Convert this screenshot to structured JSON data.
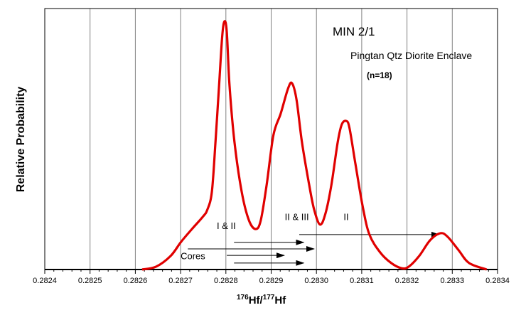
{
  "chart_data": {
    "type": "line",
    "title": "MIN 2/1",
    "subtitle": "Pingtan Qtz Diorite Enclave",
    "n_label": "(n=18)",
    "xlabel_sup1": "176",
    "xlabel_mid": "Hf/",
    "xlabel_sup2": "177",
    "xlabel_end": "Hf",
    "ylabel": "Relative Probability",
    "xlim": [
      0.2824,
      0.2834
    ],
    "ylim": [
      0,
      1
    ],
    "grid": "vertical",
    "x_ticks": [
      "0.2824",
      "0.2825",
      "0.2826",
      "0.2827",
      "0.2828",
      "0.2829",
      "0.2830",
      "0.2831",
      "0.2832",
      "0.2833",
      "0.2834"
    ],
    "series": [
      {
        "name": "Relative Probability",
        "color": "#e00000",
        "points": [
          [
            0.282615,
            0
          ],
          [
            0.282646,
            0.011
          ],
          [
            0.282678,
            0.052
          ],
          [
            0.282701,
            0.106
          ],
          [
            0.282725,
            0.155
          ],
          [
            0.282749,
            0.202
          ],
          [
            0.282759,
            0.229
          ],
          [
            0.282769,
            0.297
          ],
          [
            0.282777,
            0.488
          ],
          [
            0.282785,
            0.706
          ],
          [
            0.282792,
            0.896
          ],
          [
            0.282797,
            0.951
          ],
          [
            0.282802,
            0.91
          ],
          [
            0.282808,
            0.706
          ],
          [
            0.282819,
            0.488
          ],
          [
            0.282835,
            0.297
          ],
          [
            0.282851,
            0.188
          ],
          [
            0.282866,
            0.155
          ],
          [
            0.282877,
            0.188
          ],
          [
            0.28289,
            0.324
          ],
          [
            0.282905,
            0.515
          ],
          [
            0.282921,
            0.597
          ],
          [
            0.282937,
            0.692
          ],
          [
            0.282946,
            0.714
          ],
          [
            0.282956,
            0.651
          ],
          [
            0.282968,
            0.488
          ],
          [
            0.282984,
            0.324
          ],
          [
            0.282995,
            0.229
          ],
          [
            0.283008,
            0.172
          ],
          [
            0.28302,
            0.215
          ],
          [
            0.283033,
            0.324
          ],
          [
            0.283047,
            0.488
          ],
          [
            0.283056,
            0.556
          ],
          [
            0.283066,
            0.569
          ],
          [
            0.283073,
            0.542
          ],
          [
            0.283086,
            0.406
          ],
          [
            0.283102,
            0.243
          ],
          [
            0.283117,
            0.134
          ],
          [
            0.283141,
            0.065
          ],
          [
            0.283165,
            0.025
          ],
          [
            0.283188,
            0.005
          ],
          [
            0.283204,
            0.011
          ],
          [
            0.283227,
            0.052
          ],
          [
            0.283251,
            0.112
          ],
          [
            0.283274,
            0.139
          ],
          [
            0.28329,
            0.125
          ],
          [
            0.283314,
            0.074
          ],
          [
            0.283337,
            0.025
          ],
          [
            0.283376,
            0
          ]
        ]
      }
    ],
    "annotations": [
      {
        "text": "I & II",
        "x": 0.28278,
        "y": 0.155
      },
      {
        "text": "II & III",
        "x": 0.28293,
        "y": 0.19
      },
      {
        "text": "II",
        "x": 0.28306,
        "y": 0.19
      },
      {
        "text": "Cores",
        "x": 0.2827,
        "y": 0.04
      }
    ],
    "arrows": [
      {
        "from": 0.282962,
        "to": 0.283271,
        "y": 0.134
      },
      {
        "from": 0.282818,
        "to": 0.282972,
        "y": 0.104
      },
      {
        "from": 0.282716,
        "to": 0.282995,
        "y": 0.079
      },
      {
        "from": 0.282802,
        "to": 0.282929,
        "y": 0.054
      },
      {
        "from": 0.282818,
        "to": 0.282972,
        "y": 0.025
      }
    ]
  }
}
